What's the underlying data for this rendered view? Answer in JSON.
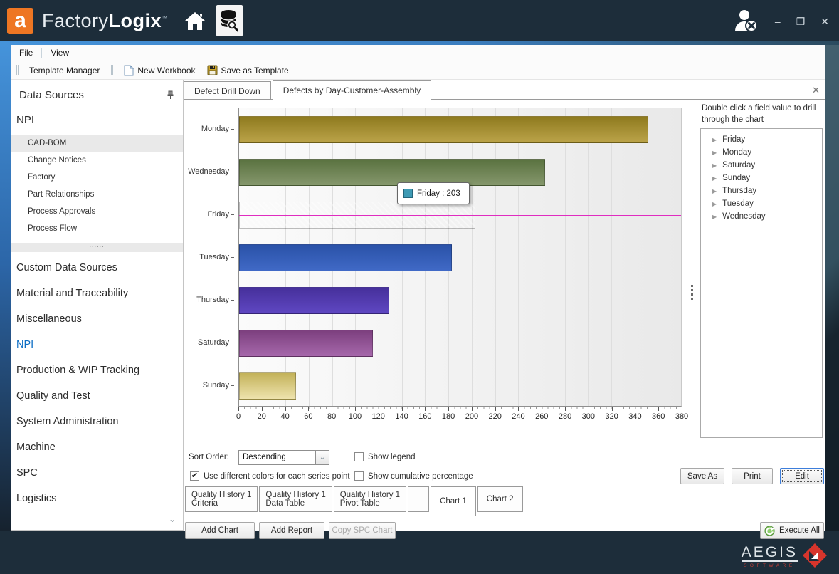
{
  "window": {
    "logo_letter": "a",
    "brand_prefix": "Factory",
    "brand_suffix": "Logix",
    "trademark": "™",
    "controls": {
      "minimize": "–",
      "maximize": "❒",
      "close": "✕"
    }
  },
  "menu_bar": {
    "items": [
      "File",
      "View"
    ]
  },
  "toolbar": {
    "template_manager": "Template Manager",
    "new_workbook": "New Workbook",
    "save_as_template": "Save as Template"
  },
  "sidebar": {
    "title": "Data Sources",
    "group_title": "NPI",
    "group_items": [
      "CAD-BOM",
      "Change Notices",
      "Factory",
      "Part Relationships",
      "Process Approvals",
      "Process Flow"
    ],
    "selected_item": "CAD-BOM",
    "splitter_dots": "......",
    "categories": [
      "Custom Data Sources",
      "Material and Traceability",
      "Miscellaneous",
      "NPI",
      "Production & WIP Tracking",
      "Quality and Test",
      "System Administration",
      "Machine",
      "SPC",
      "Logistics"
    ],
    "active_category": "NPI"
  },
  "doc_tabs": {
    "tabs": [
      {
        "label": "Defect Drill Down",
        "active": false
      },
      {
        "label": "Defects by Day-Customer-Assembly",
        "active": true
      }
    ],
    "close_glyph": "✕"
  },
  "chart_data": {
    "type": "bar",
    "orientation": "horizontal",
    "categories": [
      "Monday",
      "Wednesday",
      "Friday",
      "Tuesday",
      "Thursday",
      "Saturday",
      "Sunday"
    ],
    "values": [
      352,
      263,
      203,
      183,
      129,
      115,
      49
    ],
    "bar_colors": [
      [
        "#8e7a1e",
        "#bba349"
      ],
      [
        "#5a7240",
        "#85976c"
      ],
      [
        "#2f89a4",
        "#6cbcd2"
      ],
      [
        "#2a52a8",
        "#4069c6"
      ],
      [
        "#46309b",
        "#5f47c2"
      ],
      [
        "#7c3f7e",
        "#a668ab"
      ],
      [
        "#c3b259",
        "#eee3ae"
      ]
    ],
    "xlim": [
      0,
      380
    ],
    "x_tick_step": 20,
    "grid": "vertical",
    "legend_visible": false,
    "selected_category": "Friday",
    "selected_value": 203,
    "tooltip_label": "Friday : 203",
    "tooltip_swatch_color": "#3e9ab4",
    "highlight_line_color": "#e02cc0"
  },
  "drill_panel": {
    "hint": "Double click a field value to drill through the chart",
    "items": [
      "Friday",
      "Monday",
      "Saturday",
      "Sunday",
      "Thursday",
      "Tuesday",
      "Wednesday"
    ]
  },
  "controls": {
    "sort_label": "Sort Order:",
    "sort_value": "Descending",
    "show_legend": {
      "label": "Show legend",
      "checked": false
    },
    "use_colors": {
      "label": "Use different colors for each series point",
      "checked": true
    },
    "show_cumulative": {
      "label": "Show cumulative percentage",
      "checked": false
    },
    "save_as": "Save As",
    "print": "Print",
    "edit": "Edit"
  },
  "workbook_tabs": [
    {
      "line1": "Quality History 1",
      "line2": "Criteria",
      "active": false
    },
    {
      "line1": "Quality History 1",
      "line2": "Data Table",
      "active": false
    },
    {
      "line1": "Quality History 1",
      "line2": "Pivot Table",
      "active": false
    },
    {
      "line1": "",
      "line2": "",
      "active": false,
      "blank": true
    },
    {
      "line1": "Chart 1",
      "line2": "",
      "active": true
    },
    {
      "line1": "Chart 2",
      "line2": "",
      "active": false
    }
  ],
  "actions": {
    "add_chart": "Add Chart",
    "add_report": "Add Report",
    "copy_spc": "Copy SPC Chart",
    "execute_all": "Execute All"
  },
  "footer": {
    "brand": "AEGIS",
    "subbrand": "SOFTWARE"
  }
}
